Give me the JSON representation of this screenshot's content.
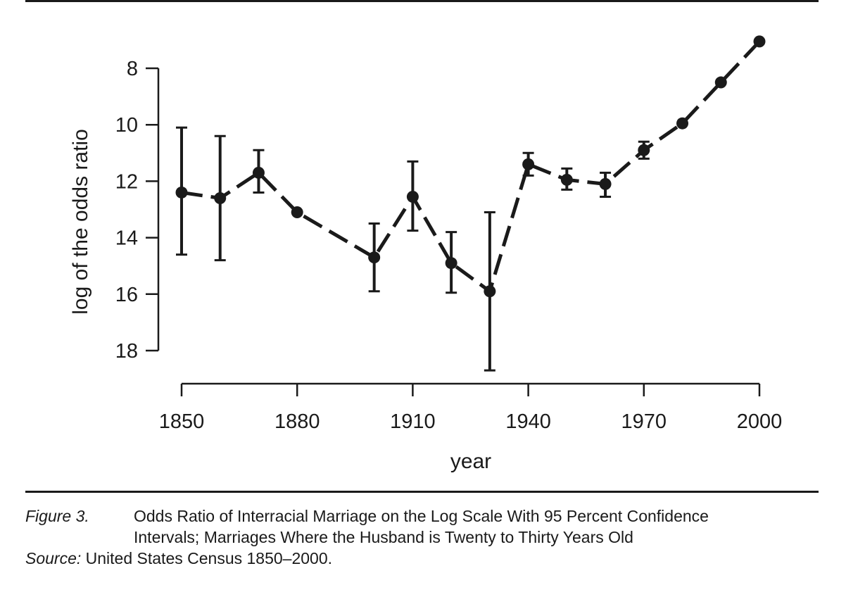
{
  "chart_data": {
    "type": "line",
    "xlabel": "year",
    "ylabel": "log of the odds ratio",
    "xlim": [
      1848,
      2003
    ],
    "ylim": [
      19,
      7
    ],
    "y_reversed": true,
    "x_ticks": [
      1850,
      1880,
      1910,
      1940,
      1970,
      2000
    ],
    "y_ticks": [
      8,
      10,
      12,
      14,
      16,
      18
    ],
    "line_style": "dashed",
    "marker": "filled-circle",
    "error_bars": "95 percent confidence intervals",
    "colors": {
      "series": "#1a1a1a"
    },
    "points": [
      {
        "x": 1850,
        "y": 12.4,
        "lo": 10.1,
        "hi": 14.6
      },
      {
        "x": 1860,
        "y": 12.6,
        "lo": 10.4,
        "hi": 14.8
      },
      {
        "x": 1870,
        "y": 11.7,
        "lo": 10.9,
        "hi": 12.4
      },
      {
        "x": 1880,
        "y": 13.1,
        "lo": 13.1,
        "hi": 13.1
      },
      {
        "x": 1900,
        "y": 14.7,
        "lo": 13.5,
        "hi": 15.9
      },
      {
        "x": 1910,
        "y": 12.55,
        "lo": 11.3,
        "hi": 13.75
      },
      {
        "x": 1920,
        "y": 14.9,
        "lo": 13.8,
        "hi": 15.95
      },
      {
        "x": 1930,
        "y": 15.9,
        "lo": 13.1,
        "hi": 18.7
      },
      {
        "x": 1940,
        "y": 11.4,
        "lo": 11.0,
        "hi": 11.8
      },
      {
        "x": 1950,
        "y": 11.95,
        "lo": 11.55,
        "hi": 12.3
      },
      {
        "x": 1960,
        "y": 12.1,
        "lo": 11.7,
        "hi": 12.55
      },
      {
        "x": 1970,
        "y": 10.9,
        "lo": 10.6,
        "hi": 11.2
      },
      {
        "x": 1980,
        "y": 9.95,
        "lo": 9.95,
        "hi": 9.95
      },
      {
        "x": 1990,
        "y": 8.5,
        "lo": 8.5,
        "hi": 8.5
      },
      {
        "x": 2000,
        "y": 7.05,
        "lo": 7.05,
        "hi": 7.05
      }
    ]
  },
  "caption": {
    "label": "Figure 3.",
    "line1": "Odds Ratio of Interracial Marriage on the Log Scale With 95 Percent Confidence",
    "line2": "Intervals; Marriages Where the Husband is Twenty to Thirty Years Old",
    "source_label": "Source:",
    "source_text": " United States Census 1850–2000."
  }
}
